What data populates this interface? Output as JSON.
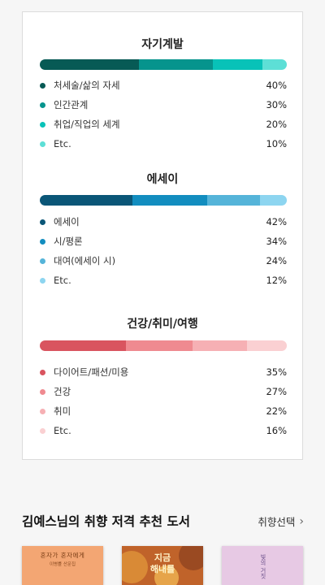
{
  "sections": [
    {
      "title": "자기계발",
      "items": [
        {
          "label": "처세술/삶의 자세",
          "percent": "40%",
          "value": 40,
          "color": "#075a55"
        },
        {
          "label": "인간관계",
          "percent": "30%",
          "value": 30,
          "color": "#06948d"
        },
        {
          "label": "취업/직업의 세계",
          "percent": "20%",
          "value": 20,
          "color": "#08c2b8"
        },
        {
          "label": "Etc.",
          "percent": "10%",
          "value": 10,
          "color": "#5ddfd6"
        }
      ]
    },
    {
      "title": "에세이",
      "items": [
        {
          "label": "에세이",
          "percent": "42%",
          "value": 42,
          "color": "#0a5677"
        },
        {
          "label": "시/평론",
          "percent": "34%",
          "value": 34,
          "color": "#128dbf"
        },
        {
          "label": "대여(에세이 시)",
          "percent": "24%",
          "value": 24,
          "color": "#55b4d9"
        },
        {
          "label": "Etc.",
          "percent": "12%",
          "value": 12,
          "color": "#8dd5f0"
        }
      ]
    },
    {
      "title": "건강/취미/여행",
      "items": [
        {
          "label": "다이어트/패션/미용",
          "percent": "35%",
          "value": 35,
          "color": "#d9545f"
        },
        {
          "label": "건강",
          "percent": "27%",
          "value": 27,
          "color": "#ef8a90"
        },
        {
          "label": "취미",
          "percent": "22%",
          "value": 22,
          "color": "#f6b0b4"
        },
        {
          "label": "Etc.",
          "percent": "16%",
          "value": 16,
          "color": "#fad0d2"
        }
      ]
    }
  ],
  "recommend": {
    "title": "김예스님의 취향 저격 추천 도서",
    "link_label": "취향선택",
    "link_icon": "chevron-right-icon"
  },
  "books": [
    {
      "title": "혼자가 혼자에게",
      "subtitle": "이병률 산문집"
    },
    {
      "title": "지금",
      "title2": "해내를"
    },
    {
      "title": "빛의 거짓"
    }
  ]
}
